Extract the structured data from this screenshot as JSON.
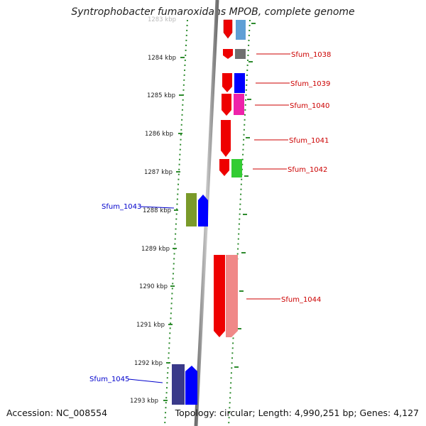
{
  "title": "Syntrophobacter fumaroxidans MPOB, complete genome",
  "footer": {
    "accession": "Accession: NC_008554",
    "summary": "Topology: circular; Length: 4,990,251 bp; Genes: 4,127"
  },
  "ticks": [
    "1283 kbp",
    "1284 kbp",
    "1285 kbp",
    "1286 kbp",
    "1287 kbp",
    "1288 kbp",
    "1289 kbp",
    "1290 kbp",
    "1291 kbp",
    "1292 kbp",
    "1293 kbp"
  ],
  "gene_labels": [
    {
      "name": "Sfum_1038",
      "color": "#cc0000"
    },
    {
      "name": "Sfum_1039",
      "color": "#cc0000"
    },
    {
      "name": "Sfum_1040",
      "color": "#cc0000"
    },
    {
      "name": "Sfum_1041",
      "color": "#cc0000"
    },
    {
      "name": "Sfum_1042",
      "color": "#cc0000"
    },
    {
      "name": "Sfum_1043",
      "color": "#0000cc"
    },
    {
      "name": "Sfum_1044",
      "color": "#cc0000"
    },
    {
      "name": "Sfum_1045",
      "color": "#0000cc"
    }
  ],
  "colors": {
    "axis": "#8a8a8a",
    "dots": "#2e8b2e",
    "red": "#ee0000",
    "steelblue": "#5f9fd5",
    "gray": "#707070",
    "blue": "#0000ff",
    "magenta": "#ee22aa",
    "green": "#33cc33",
    "olive": "#7a9a2a",
    "salmon": "#f08888",
    "navy": "#3a3a8a"
  }
}
